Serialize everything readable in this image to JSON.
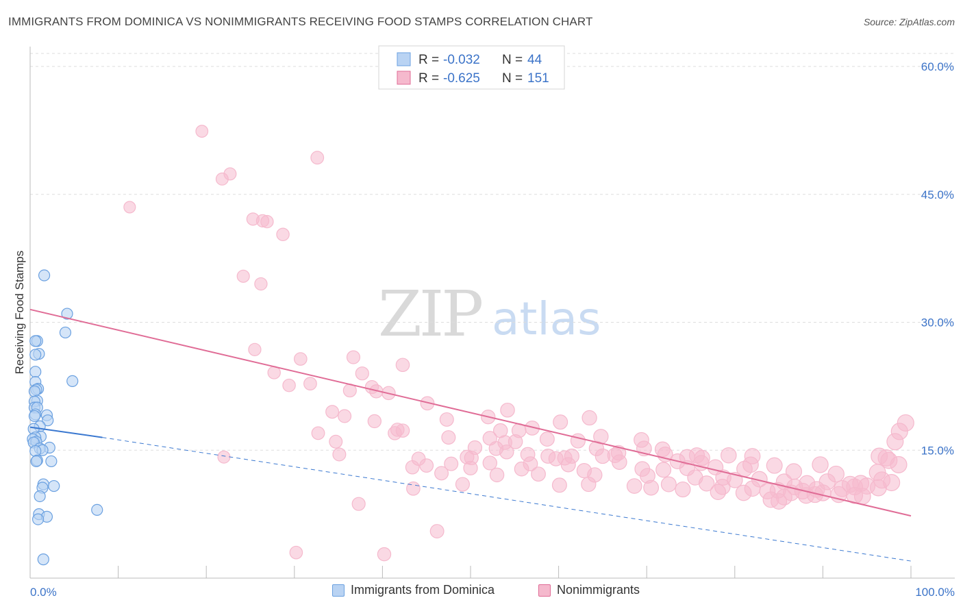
{
  "title": "IMMIGRANTS FROM DOMINICA VS NONIMMIGRANTS RECEIVING FOOD STAMPS CORRELATION CHART",
  "source": "Source: ZipAtlas.com",
  "watermark": {
    "part1": "ZIP",
    "part2": "atlas"
  },
  "colors": {
    "blue": "#6aa0e0",
    "blue_fill": "#b9d3f3",
    "pink": "#e06c96",
    "pink_fill": "#f5b9cd"
  },
  "legend_box": [
    {
      "r_label": "R = ",
      "r_value": "-0.032",
      "n_label": "N = ",
      "n_value": "44"
    },
    {
      "r_label": "R = ",
      "r_value": "-0.625",
      "n_label": "N = ",
      "n_value": "151"
    }
  ],
  "bottom_legend": {
    "series1": "Immigrants from Dominica",
    "series2": "Nonimmigrants"
  },
  "chart_data": {
    "type": "scatter",
    "title": "IMMIGRANTS FROM DOMINICA VS NONIMMIGRANTS RECEIVING FOOD STAMPS CORRELATION CHART",
    "xlabel": "",
    "ylabel": "Receiving Food Stamps",
    "xlim": [
      0,
      100
    ],
    "ylim": [
      0,
      60
    ],
    "x_tick_labels": [
      "0.0%",
      "100.0%"
    ],
    "y_ticks": [
      15,
      30,
      45,
      60
    ],
    "y_tick_labels": [
      "15.0%",
      "30.0%",
      "45.0%",
      "60.0%"
    ],
    "grid": true,
    "legend": "top-center",
    "series": [
      {
        "name": "Immigrants from Dominica",
        "r": -0.032,
        "n": 44,
        "trend_solid": {
          "x": [
            0,
            8.2
          ],
          "y": [
            17.7,
            16.5
          ]
        },
        "trend_dashed": {
          "x": [
            8.2,
            100
          ],
          "y": [
            16.5,
            2.0
          ]
        },
        "points": [
          [
            1.6,
            35.5
          ],
          [
            4.2,
            31.0
          ],
          [
            4.0,
            28.8
          ],
          [
            0.8,
            27.8
          ],
          [
            0.6,
            27.8
          ],
          [
            1.0,
            26.3
          ],
          [
            0.6,
            26.2
          ],
          [
            0.6,
            24.2
          ],
          [
            4.8,
            23.1
          ],
          [
            0.6,
            23.0
          ],
          [
            0.9,
            22.2
          ],
          [
            0.7,
            22.1
          ],
          [
            0.5,
            21.9
          ],
          [
            0.8,
            20.8
          ],
          [
            0.5,
            20.7
          ],
          [
            0.5,
            20.0
          ],
          [
            0.8,
            20.0
          ],
          [
            0.6,
            19.2
          ],
          [
            1.9,
            19.1
          ],
          [
            0.5,
            19.0
          ],
          [
            2.0,
            18.5
          ],
          [
            1.1,
            17.8
          ],
          [
            0.4,
            17.5
          ],
          [
            1.2,
            16.6
          ],
          [
            0.6,
            16.5
          ],
          [
            0.3,
            16.3
          ],
          [
            0.7,
            16.0
          ],
          [
            0.4,
            15.9
          ],
          [
            2.2,
            15.3
          ],
          [
            1.1,
            15.2
          ],
          [
            1.4,
            15.0
          ],
          [
            0.6,
            14.9
          ],
          [
            0.8,
            13.8
          ],
          [
            2.4,
            13.7
          ],
          [
            0.7,
            13.7
          ],
          [
            1.5,
            11.0
          ],
          [
            2.7,
            10.8
          ],
          [
            1.4,
            10.6
          ],
          [
            1.1,
            9.6
          ],
          [
            7.6,
            8.0
          ],
          [
            1.0,
            7.5
          ],
          [
            1.9,
            7.2
          ],
          [
            0.9,
            6.9
          ],
          [
            1.5,
            2.2
          ]
        ]
      },
      {
        "name": "Nonimmigrants",
        "r": -0.625,
        "n": 151,
        "trend": {
          "x": [
            0,
            100
          ],
          "y": [
            31.5,
            7.3
          ]
        },
        "points": [
          [
            19.5,
            52.4
          ],
          [
            32.6,
            49.3
          ],
          [
            22.7,
            47.4
          ],
          [
            21.8,
            46.8
          ],
          [
            11.3,
            43.5
          ],
          [
            25.3,
            42.1
          ],
          [
            26.4,
            41.9
          ],
          [
            26.9,
            41.8
          ],
          [
            28.7,
            40.3
          ],
          [
            24.2,
            35.4
          ],
          [
            26.2,
            34.5
          ],
          [
            25.5,
            26.8
          ],
          [
            36.7,
            25.9
          ],
          [
            30.7,
            25.7
          ],
          [
            42.3,
            25.0
          ],
          [
            27.7,
            24.1
          ],
          [
            37.7,
            24.0
          ],
          [
            31.8,
            22.8
          ],
          [
            29.4,
            22.6
          ],
          [
            38.8,
            22.4
          ],
          [
            36.3,
            22.0
          ],
          [
            39.3,
            21.9
          ],
          [
            40.7,
            21.7
          ],
          [
            45.1,
            20.5
          ],
          [
            34.3,
            19.5
          ],
          [
            54.2,
            19.7
          ],
          [
            35.7,
            19.0
          ],
          [
            47.3,
            18.6
          ],
          [
            52.0,
            18.9
          ],
          [
            63.5,
            18.8
          ],
          [
            39.1,
            18.4
          ],
          [
            60.2,
            18.3
          ],
          [
            57.0,
            17.6
          ],
          [
            41.7,
            17.4
          ],
          [
            55.5,
            17.3
          ],
          [
            53.4,
            17.3
          ],
          [
            32.7,
            17.0
          ],
          [
            41.4,
            17.0
          ],
          [
            64.8,
            16.6
          ],
          [
            52.2,
            16.4
          ],
          [
            47.5,
            16.5
          ],
          [
            58.7,
            16.3
          ],
          [
            42.3,
            17.3
          ],
          [
            34.7,
            16.0
          ],
          [
            53.9,
            15.9
          ],
          [
            62.2,
            16.1
          ],
          [
            55.1,
            16.0
          ],
          [
            69.4,
            16.2
          ],
          [
            50.5,
            15.3
          ],
          [
            52.9,
            15.2
          ],
          [
            69.7,
            15.2
          ],
          [
            64.3,
            15.2
          ],
          [
            71.8,
            15.1
          ],
          [
            54.1,
            14.8
          ],
          [
            66.8,
            14.7
          ],
          [
            56.5,
            14.5
          ],
          [
            35.1,
            14.5
          ],
          [
            49.6,
            14.2
          ],
          [
            58.8,
            14.3
          ],
          [
            60.7,
            14.1
          ],
          [
            61.5,
            14.3
          ],
          [
            65.0,
            14.3
          ],
          [
            66.4,
            14.4
          ],
          [
            72.1,
            14.5
          ],
          [
            44.1,
            14.0
          ],
          [
            50.1,
            14.1
          ],
          [
            59.7,
            14.0
          ],
          [
            74.6,
            14.2
          ],
          [
            75.7,
            14.4
          ],
          [
            76.3,
            14.1
          ],
          [
            79.3,
            14.4
          ],
          [
            82.0,
            14.3
          ],
          [
            22.0,
            14.2
          ],
          [
            47.8,
            13.4
          ],
          [
            52.2,
            13.5
          ],
          [
            56.8,
            13.4
          ],
          [
            61.1,
            13.3
          ],
          [
            66.9,
            13.6
          ],
          [
            73.5,
            13.7
          ],
          [
            76.2,
            13.5
          ],
          [
            81.8,
            13.3
          ],
          [
            84.5,
            13.2
          ],
          [
            89.7,
            13.3
          ],
          [
            96.4,
            14.3
          ],
          [
            97.2,
            14.1
          ],
          [
            97.5,
            13.8
          ],
          [
            45.0,
            13.2
          ],
          [
            43.4,
            13.0
          ],
          [
            50.0,
            12.9
          ],
          [
            55.8,
            12.8
          ],
          [
            62.9,
            12.6
          ],
          [
            69.5,
            12.8
          ],
          [
            71.9,
            12.7
          ],
          [
            74.6,
            12.9
          ],
          [
            77.8,
            13.0
          ],
          [
            81.1,
            12.8
          ],
          [
            86.7,
            12.5
          ],
          [
            91.5,
            12.2
          ],
          [
            96.2,
            12.4
          ],
          [
            98.6,
            13.3
          ],
          [
            46.7,
            12.3
          ],
          [
            53.0,
            12.1
          ],
          [
            57.7,
            12.2
          ],
          [
            64.1,
            12.1
          ],
          [
            70.1,
            12.0
          ],
          [
            75.5,
            11.8
          ],
          [
            78.7,
            11.8
          ],
          [
            80.0,
            11.5
          ],
          [
            82.8,
            11.6
          ],
          [
            85.6,
            11.3
          ],
          [
            88.2,
            11.1
          ],
          [
            90.5,
            11.3
          ],
          [
            93.1,
            11.0
          ],
          [
            94.3,
            11.1
          ],
          [
            96.7,
            11.5
          ],
          [
            97.8,
            11.2
          ],
          [
            49.1,
            11.0
          ],
          [
            60.1,
            10.9
          ],
          [
            63.4,
            11.0
          ],
          [
            68.6,
            10.8
          ],
          [
            72.5,
            11.0
          ],
          [
            76.8,
            11.1
          ],
          [
            78.6,
            10.7
          ],
          [
            82.0,
            10.5
          ],
          [
            84.9,
            10.3
          ],
          [
            86.8,
            10.7
          ],
          [
            89.3,
            10.4
          ],
          [
            92.2,
            10.5
          ],
          [
            93.6,
            10.7
          ],
          [
            95.0,
            10.8
          ],
          [
            96.3,
            10.6
          ],
          [
            43.5,
            10.5
          ],
          [
            70.5,
            10.6
          ],
          [
            74.1,
            10.4
          ],
          [
            78.1,
            10.1
          ],
          [
            81.0,
            10.0
          ],
          [
            83.7,
            10.2
          ],
          [
            86.4,
            10.0
          ],
          [
            88.1,
            9.7
          ],
          [
            90.0,
            10.0
          ],
          [
            91.8,
            9.8
          ],
          [
            94.5,
            9.6
          ],
          [
            85.6,
            9.5
          ],
          [
            87.7,
            10.2
          ],
          [
            89.1,
            9.8
          ],
          [
            93.6,
            9.7
          ],
          [
            84.1,
            9.2
          ],
          [
            85.0,
            9.0
          ],
          [
            37.3,
            8.7
          ],
          [
            46.2,
            5.5
          ],
          [
            30.2,
            3.0
          ],
          [
            40.2,
            2.8
          ],
          [
            99.4,
            18.2
          ],
          [
            98.7,
            17.2
          ],
          [
            98.2,
            16.0
          ]
        ]
      }
    ]
  }
}
